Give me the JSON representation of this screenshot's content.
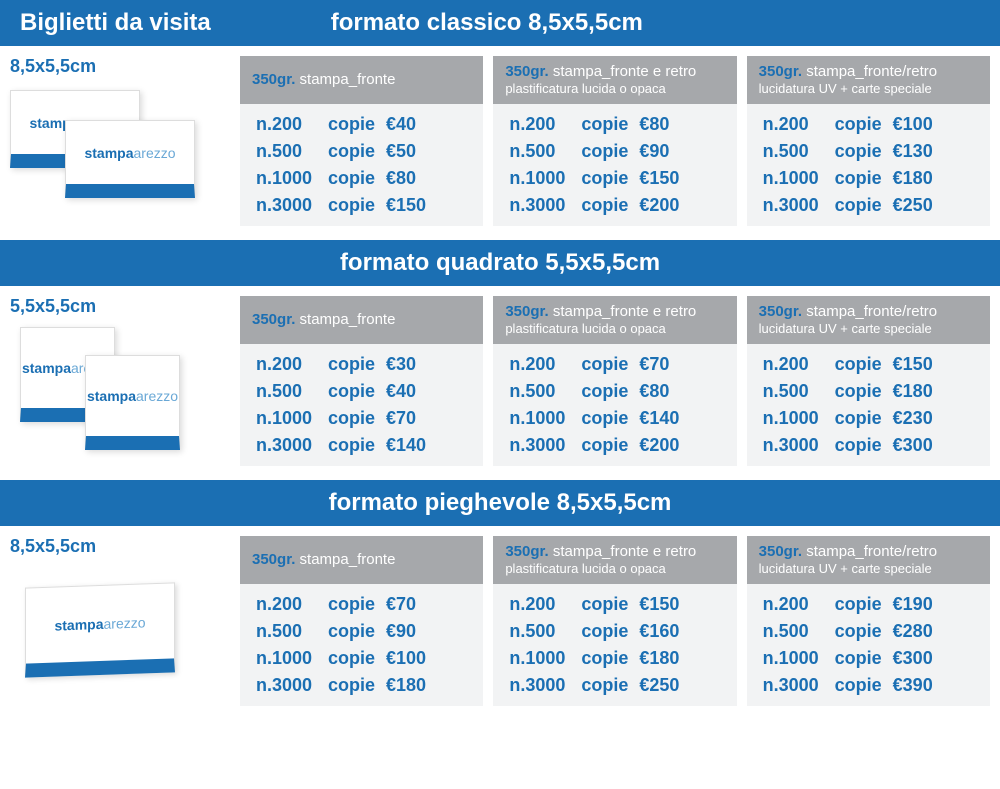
{
  "colors": {
    "brand_blue": "#1b6fb3",
    "header_gray": "#a6a8ab",
    "panel_bg": "#f2f3f4",
    "white": "#ffffff"
  },
  "brand": {
    "bold": "stampa",
    "light": "arezzo"
  },
  "title": "Biglietti da visita",
  "copie_label": "copie",
  "columns": [
    {
      "weight": "350gr.",
      "line1": "stampa_fronte",
      "line2": ""
    },
    {
      "weight": "350gr.",
      "line1": "stampa_fronte e retro",
      "line2": "plastificatura lucida o opaca"
    },
    {
      "weight": "350gr.",
      "line1": "stampa_fronte/retro",
      "line2": "lucidatura UV + carte speciale"
    }
  ],
  "sections": [
    {
      "header": "formato classico 8,5x5,5cm",
      "first": true,
      "size_label": "8,5x5,5cm",
      "illustration": "classic",
      "cols": [
        [
          {
            "q": "n.200",
            "p": "€40"
          },
          {
            "q": "n.500",
            "p": "€50"
          },
          {
            "q": "n.1000",
            "p": "€80"
          },
          {
            "q": "n.3000",
            "p": "€150"
          }
        ],
        [
          {
            "q": "n.200",
            "p": "€80"
          },
          {
            "q": "n.500",
            "p": "€90"
          },
          {
            "q": "n.1000",
            "p": "€150"
          },
          {
            "q": "n.3000",
            "p": "€200"
          }
        ],
        [
          {
            "q": "n.200",
            "p": "€100"
          },
          {
            "q": "n.500",
            "p": "€130"
          },
          {
            "q": "n.1000",
            "p": "€180"
          },
          {
            "q": "n.3000",
            "p": "€250"
          }
        ]
      ]
    },
    {
      "header": "formato quadrato 5,5x5,5cm",
      "first": false,
      "size_label": "5,5x5,5cm",
      "illustration": "square",
      "cols": [
        [
          {
            "q": "n.200",
            "p": "€30"
          },
          {
            "q": "n.500",
            "p": "€40"
          },
          {
            "q": "n.1000",
            "p": "€70"
          },
          {
            "q": "n.3000",
            "p": "€140"
          }
        ],
        [
          {
            "q": "n.200",
            "p": "€70"
          },
          {
            "q": "n.500",
            "p": "€80"
          },
          {
            "q": "n.1000",
            "p": "€140"
          },
          {
            "q": "n.3000",
            "p": "€200"
          }
        ],
        [
          {
            "q": "n.200",
            "p": "€150"
          },
          {
            "q": "n.500",
            "p": "€180"
          },
          {
            "q": "n.1000",
            "p": "€230"
          },
          {
            "q": "n.3000",
            "p": "€300"
          }
        ]
      ]
    },
    {
      "header": "formato pieghevole 8,5x5,5cm",
      "first": false,
      "size_label": "8,5x5,5cm",
      "illustration": "fold",
      "cols": [
        [
          {
            "q": "n.200",
            "p": "€70"
          },
          {
            "q": "n.500",
            "p": "€90"
          },
          {
            "q": "n.1000",
            "p": "€100"
          },
          {
            "q": "n.3000",
            "p": "€180"
          }
        ],
        [
          {
            "q": "n.200",
            "p": "€150"
          },
          {
            "q": "n.500",
            "p": "€160"
          },
          {
            "q": "n.1000",
            "p": "€180"
          },
          {
            "q": "n.3000",
            "p": "€250"
          }
        ],
        [
          {
            "q": "n.200",
            "p": "€190"
          },
          {
            "q": "n.500",
            "p": "€280"
          },
          {
            "q": "n.1000",
            "p": "€300"
          },
          {
            "q": "n.3000",
            "p": "€390"
          }
        ]
      ]
    }
  ]
}
